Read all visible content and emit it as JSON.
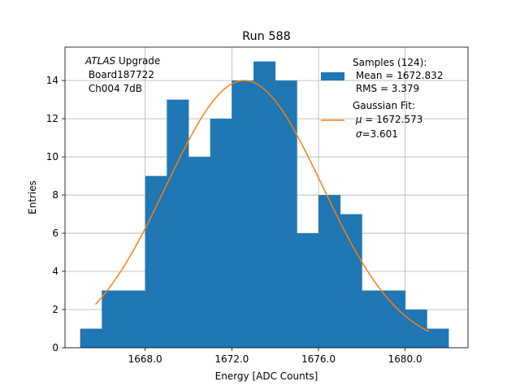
{
  "chart_data": {
    "type": "bar",
    "title": "Run 588",
    "xlabel": "Energy [ADC Counts]",
    "ylabel": "Entries",
    "xlim": [
      1664.3,
      1682.9
    ],
    "ylim": [
      0,
      15.75
    ],
    "grid": true,
    "x_ticks": [
      1668,
      1672,
      1676,
      1680
    ],
    "x_tick_labels": [
      "1668.0",
      "1672.0",
      "1676.0",
      "1680.0"
    ],
    "y_ticks": [
      0,
      2,
      4,
      6,
      8,
      10,
      12,
      14
    ],
    "y_tick_labels": [
      "0",
      "2",
      "4",
      "6",
      "8",
      "10",
      "12",
      "14"
    ],
    "bin_edges": [
      1665,
      1666,
      1667,
      1668,
      1669,
      1670,
      1671,
      1672,
      1673,
      1674,
      1675,
      1676,
      1677,
      1678,
      1679,
      1680,
      1681,
      1682
    ],
    "values": [
      1,
      3,
      3,
      9,
      13,
      10,
      12,
      14,
      15,
      14,
      6,
      8,
      7,
      3,
      3,
      2,
      1
    ],
    "bar_color": "#1f77b4",
    "fit": {
      "name": "Gaussian Fit",
      "mu": 1672.573,
      "sigma": 3.601,
      "peak": 14.0,
      "x_range": [
        1665.7,
        1681.1
      ],
      "color": "#ff7f0e"
    },
    "annotation": {
      "italic": "ATLAS",
      "line1_rest": " Upgrade",
      "line2": " Board187722",
      "line3": " Ch004 7dB"
    },
    "legend": {
      "position": "top-right",
      "samples_line1": "Samples (124):",
      "samples_line2": " Mean = 1672.832",
      "samples_line3": " RMS = 3.379",
      "fit_line1": "Gaussian Fit:",
      "fit_line2_symbol": "μ",
      "fit_line2_rest": " = 1672.573",
      "fit_line3_symbol": "σ",
      "fit_line3_rest": "=3.601"
    }
  }
}
